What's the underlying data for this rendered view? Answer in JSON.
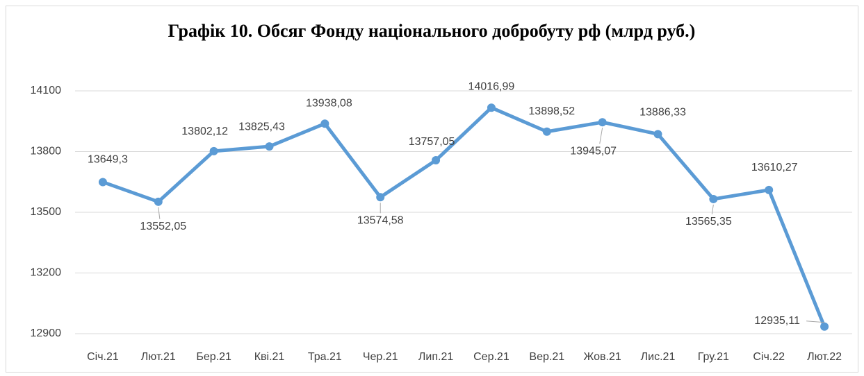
{
  "chart_data": {
    "type": "line",
    "title": "Графік 10. Обсяг Фонду національного добробуту рф (млрд руб.)",
    "categories": [
      "Січ.21",
      "Лют.21",
      "Бер.21",
      "Кві.21",
      "Тра.21",
      "Чер.21",
      "Лип.21",
      "Сер.21",
      "Вер.21",
      "Жов.21",
      "Лис.21",
      "Гру.21",
      "Січ.22",
      "Лют.22"
    ],
    "values": [
      13649.3,
      13552.05,
      13802.12,
      13825.43,
      13938.08,
      13574.58,
      13757.05,
      14016.99,
      13898.52,
      13945.07,
      13886.33,
      13565.35,
      13610.27,
      12935.11
    ],
    "value_labels": [
      "13649,3",
      "13552,05",
      "13802,12",
      "13825,43",
      "13938,08",
      "13574,58",
      "13757,05",
      "14016,99",
      "13898,52",
      "13945,07",
      "13886,33",
      "13565,35",
      "13610,27",
      "12935,11"
    ],
    "color": "#5b9bd5",
    "ylim": [
      12900,
      14100
    ],
    "yticks": [
      12900,
      13200,
      13500,
      13800,
      14100
    ],
    "grid": true
  }
}
